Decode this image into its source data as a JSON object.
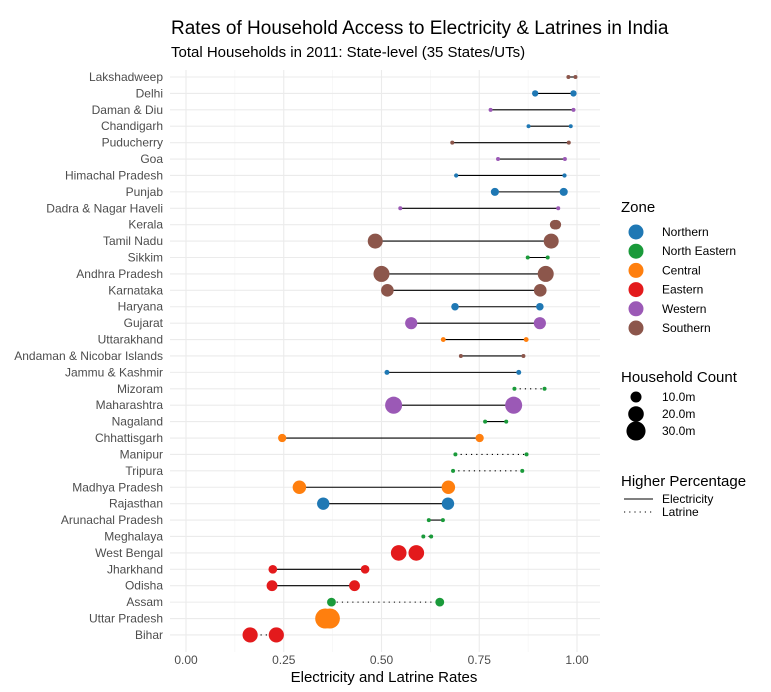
{
  "chart_data": {
    "type": "dumbbell",
    "title": "Rates of Household Access to Electricity & Latrines in India",
    "subtitle": "Total Households in 2011: State-level (35 States/UTs)",
    "xlabel": "Electricity and Latrine Rates",
    "xlim": [
      0,
      1
    ],
    "xticks": [
      0,
      0.25,
      0.5,
      0.75,
      1.0
    ],
    "xtick_labels": [
      "0.00",
      "0.25",
      "0.50",
      "0.75",
      "1.00"
    ],
    "zone_colors": {
      "Northern": "#1f78b4",
      "North Eastern": "#1a9a3a",
      "Central": "#ff7f0e",
      "Eastern": "#e31a1c",
      "Western": "#9b59b6",
      "Southern": "#8c564b"
    },
    "legend_zone": {
      "title": "Zone",
      "items": [
        "Northern",
        "North Eastern",
        "Central",
        "Eastern",
        "Western",
        "Southern"
      ]
    },
    "legend_size": {
      "title": "Household Count",
      "items": [
        {
          "label": "10.0m",
          "value": 10
        },
        {
          "label": "20.0m",
          "value": 20
        },
        {
          "label": "30.0m",
          "value": 30
        }
      ]
    },
    "legend_higher": {
      "title": "Higher Percentage",
      "items": [
        {
          "label": "Electricity",
          "style": "solid"
        },
        {
          "label": "Latrine",
          "style": "dotted"
        }
      ]
    },
    "states": [
      {
        "name": "Lakshadweep",
        "zone": "Southern",
        "latrine": 0.978,
        "electricity": 0.996,
        "households": 0.01,
        "higher": "Electricity"
      },
      {
        "name": "Delhi",
        "zone": "Northern",
        "latrine": 0.893,
        "electricity": 0.991,
        "households": 3.3,
        "higher": "Electricity"
      },
      {
        "name": "Daman & Diu",
        "zone": "Western",
        "latrine": 0.779,
        "electricity": 0.991,
        "households": 0.06,
        "higher": "Electricity"
      },
      {
        "name": "Chandigarh",
        "zone": "Northern",
        "latrine": 0.876,
        "electricity": 0.984,
        "households": 0.23,
        "higher": "Electricity"
      },
      {
        "name": "Puducherry",
        "zone": "Southern",
        "latrine": 0.681,
        "electricity": 0.979,
        "households": 0.3,
        "higher": "Electricity"
      },
      {
        "name": "Goa",
        "zone": "Western",
        "latrine": 0.798,
        "electricity": 0.969,
        "households": 0.32,
        "higher": "Electricity"
      },
      {
        "name": "Himachal Pradesh",
        "zone": "Northern",
        "latrine": 0.691,
        "electricity": 0.968,
        "households": 1.48,
        "higher": "Electricity"
      },
      {
        "name": "Punjab",
        "zone": "Northern",
        "latrine": 0.79,
        "electricity": 0.966,
        "households": 5.41,
        "higher": "Electricity"
      },
      {
        "name": "Dadra & Nagar Haveli",
        "zone": "Western",
        "latrine": 0.548,
        "electricity": 0.952,
        "households": 0.07,
        "higher": "Electricity"
      },
      {
        "name": "Kerala",
        "zone": "Southern",
        "latrine": 0.947,
        "electricity": 0.943,
        "households": 7.72,
        "higher": "Latrine"
      },
      {
        "name": "Tamil Nadu",
        "zone": "Southern",
        "latrine": 0.484,
        "electricity": 0.934,
        "households": 18.49,
        "higher": "Electricity"
      },
      {
        "name": "Sikkim",
        "zone": "North Eastern",
        "latrine": 0.874,
        "electricity": 0.925,
        "households": 0.13,
        "higher": "Electricity"
      },
      {
        "name": "Andhra Pradesh",
        "zone": "Southern",
        "latrine": 0.5,
        "electricity": 0.92,
        "households": 21.02,
        "higher": "Electricity"
      },
      {
        "name": "Karnataka",
        "zone": "Southern",
        "latrine": 0.515,
        "electricity": 0.906,
        "households": 13.18,
        "higher": "Electricity"
      },
      {
        "name": "Haryana",
        "zone": "Northern",
        "latrine": 0.688,
        "electricity": 0.905,
        "households": 4.72,
        "higher": "Electricity"
      },
      {
        "name": "Gujarat",
        "zone": "Western",
        "latrine": 0.576,
        "electricity": 0.905,
        "households": 12.18,
        "higher": "Electricity"
      },
      {
        "name": "Uttarakhand",
        "zone": "Central",
        "latrine": 0.658,
        "electricity": 0.87,
        "households": 1.99,
        "higher": "Electricity"
      },
      {
        "name": "Andaman & Nicobar Islands",
        "zone": "Southern",
        "latrine": 0.703,
        "electricity": 0.863,
        "households": 0.09,
        "higher": "Electricity"
      },
      {
        "name": "Jammu & Kashmir",
        "zone": "Northern",
        "latrine": 0.514,
        "electricity": 0.851,
        "households": 2.02,
        "higher": "Electricity"
      },
      {
        "name": "Mizoram",
        "zone": "North Eastern",
        "latrine": 0.917,
        "electricity": 0.84,
        "households": 0.22,
        "higher": "Latrine"
      },
      {
        "name": "Maharashtra",
        "zone": "Western",
        "latrine": 0.531,
        "electricity": 0.838,
        "households": 23.83,
        "higher": "Electricity"
      },
      {
        "name": "Nagaland",
        "zone": "North Eastern",
        "latrine": 0.765,
        "electricity": 0.819,
        "households": 0.4,
        "higher": "Electricity"
      },
      {
        "name": "Chhattisgarh",
        "zone": "Central",
        "latrine": 0.246,
        "electricity": 0.751,
        "households": 5.62,
        "higher": "Electricity"
      },
      {
        "name": "Manipur",
        "zone": "North Eastern",
        "latrine": 0.871,
        "electricity": 0.689,
        "households": 0.51,
        "higher": "Latrine"
      },
      {
        "name": "Tripura",
        "zone": "North Eastern",
        "latrine": 0.86,
        "electricity": 0.683,
        "households": 0.84,
        "higher": "Latrine"
      },
      {
        "name": "Madhya Pradesh",
        "zone": "Central",
        "latrine": 0.29,
        "electricity": 0.671,
        "households": 14.97,
        "higher": "Electricity"
      },
      {
        "name": "Rajasthan",
        "zone": "Northern",
        "latrine": 0.351,
        "electricity": 0.67,
        "households": 12.58,
        "higher": "Electricity"
      },
      {
        "name": "Arunachal Pradesh",
        "zone": "North Eastern",
        "latrine": 0.621,
        "electricity": 0.657,
        "households": 0.26,
        "higher": "Electricity"
      },
      {
        "name": "Meghalaya",
        "zone": "North Eastern",
        "latrine": 0.627,
        "electricity": 0.607,
        "households": 0.54,
        "higher": "Latrine"
      },
      {
        "name": "West Bengal",
        "zone": "Eastern",
        "latrine": 0.589,
        "electricity": 0.544,
        "households": 20.07,
        "higher": "Latrine"
      },
      {
        "name": "Jharkhand",
        "zone": "Eastern",
        "latrine": 0.222,
        "electricity": 0.458,
        "households": 6.18,
        "higher": "Electricity"
      },
      {
        "name": "Odisha",
        "zone": "Eastern",
        "latrine": 0.22,
        "electricity": 0.431,
        "households": 9.66,
        "higher": "Electricity"
      },
      {
        "name": "Assam",
        "zone": "North Eastern",
        "latrine": 0.649,
        "electricity": 0.372,
        "households": 6.37,
        "higher": "Latrine"
      },
      {
        "name": "Uttar Pradesh",
        "zone": "Central",
        "latrine": 0.356,
        "electricity": 0.368,
        "households": 32.92,
        "higher": "Electricity"
      },
      {
        "name": "Bihar",
        "zone": "Eastern",
        "latrine": 0.231,
        "electricity": 0.164,
        "households": 18.94,
        "higher": "Latrine"
      }
    ]
  }
}
